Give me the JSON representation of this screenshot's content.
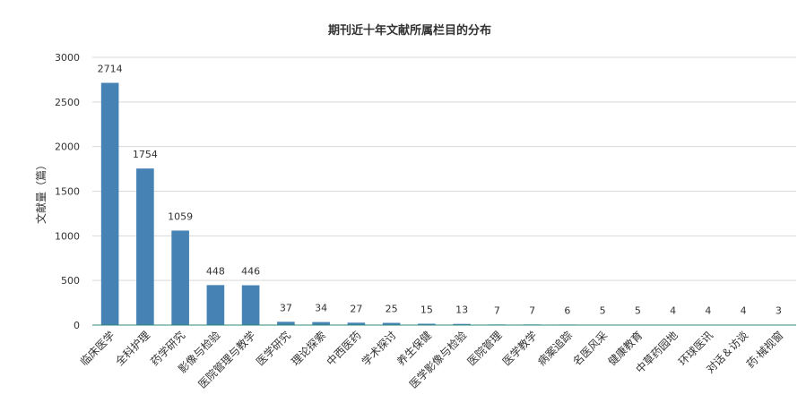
{
  "chart_data": {
    "type": "bar",
    "title": "期刊近十年文献所属栏目的分布",
    "xlabel": "",
    "ylabel": "文献量（篇）",
    "ylim": [
      0,
      3000
    ],
    "yticks": [
      0,
      500,
      1000,
      1500,
      2000,
      2500,
      3000
    ],
    "grid": true,
    "bar_color": "#4682b4",
    "categories": [
      "临床医学",
      "全科护理",
      "药学研究",
      "影像与检验",
      "医院管理与教学",
      "医学研究",
      "理论探索",
      "中西医药",
      "学术探讨",
      "养生保健",
      "医学影像与检验",
      "医院管理",
      "医学教学",
      "病案追踪",
      "名医风采",
      "健康教育",
      "中草药园地",
      "环球医讯",
      "对话＆访谈",
      "药·械视窗"
    ],
    "values": [
      2714,
      1754,
      1059,
      448,
      446,
      37,
      34,
      27,
      25,
      15,
      13,
      7,
      7,
      6,
      5,
      5,
      4,
      4,
      4,
      3
    ]
  }
}
